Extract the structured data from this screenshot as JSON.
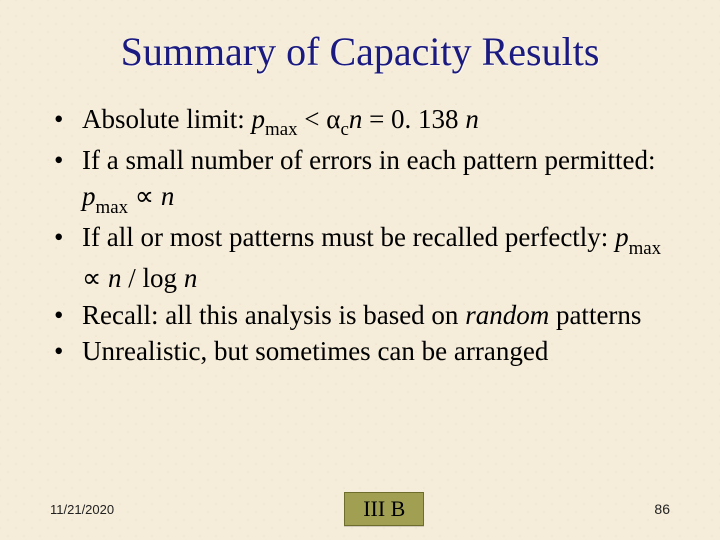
{
  "title": "Summary of Capacity Results",
  "bullets": {
    "b0": {
      "pre": "Absolute limit: ",
      "p": "p",
      "psub": "max",
      "mid1": " < ",
      "alpha": "α",
      "alphasub": "c",
      "n1": "n",
      "eq": " = 0. 138 ",
      "n2": "n"
    },
    "b1": {
      "pre": "If a small number of errors in each pattern permitted: ",
      "p": "p",
      "psub": "max",
      "prop": " ∝ ",
      "n": "n"
    },
    "b2": {
      "pre": "If all or most patterns must be recalled perfectly: ",
      "p": "p",
      "psub": "max",
      "prop": " ∝ ",
      "n1": "n",
      "mid": " / log ",
      "n2": "n"
    },
    "b3": {
      "pre": "Recall: all this analysis is based on ",
      "rand": "random",
      "post": " patterns"
    },
    "b4": {
      "txt": "Unrealistic, but sometimes can be arranged"
    }
  },
  "footer": {
    "date": "11/21/2020",
    "section": "III B",
    "page": "86"
  },
  "style": {
    "background_color": "#f5ecd9",
    "title_color": "#1a1a80",
    "title_fontsize": 40,
    "body_fontsize": 27,
    "pagebox_bg": "#a1a052",
    "pagebox_border": "#6e6d2c",
    "font_family": "Times New Roman"
  }
}
